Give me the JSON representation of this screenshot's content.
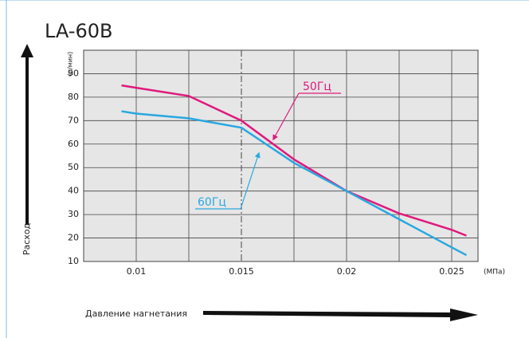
{
  "chart_data": {
    "type": "line",
    "title": "LA-60B",
    "y_label": "Расход",
    "y_unit": "(л/мин)",
    "x_label": "Давление нагнетания",
    "x_unit": "(МПа)",
    "x": [
      0.0093,
      0.01,
      0.0125,
      0.015,
      0.0175,
      0.02,
      0.0225,
      0.025,
      0.0257
    ],
    "series": [
      {
        "name": "50Гц",
        "color": "#e0197d",
        "values": [
          85,
          84,
          80.5,
          70,
          53.5,
          40,
          30.5,
          23.5,
          21
        ]
      },
      {
        "name": "60Гц",
        "color": "#29a8e0",
        "values": [
          74,
          73,
          71,
          67,
          52,
          40,
          28,
          16,
          12.7
        ]
      }
    ],
    "xlim": [
      0.0075,
      0.02625
    ],
    "xticks": [
      0.01,
      0.015,
      0.02,
      0.025
    ],
    "minor_xticks": [
      0.0125,
      0.0175,
      0.0225
    ],
    "ylim": [
      10,
      100
    ],
    "yticks": [
      10,
      20,
      30,
      40,
      50,
      60,
      70,
      80,
      90
    ],
    "reference_x": 0.015,
    "grid": true
  }
}
